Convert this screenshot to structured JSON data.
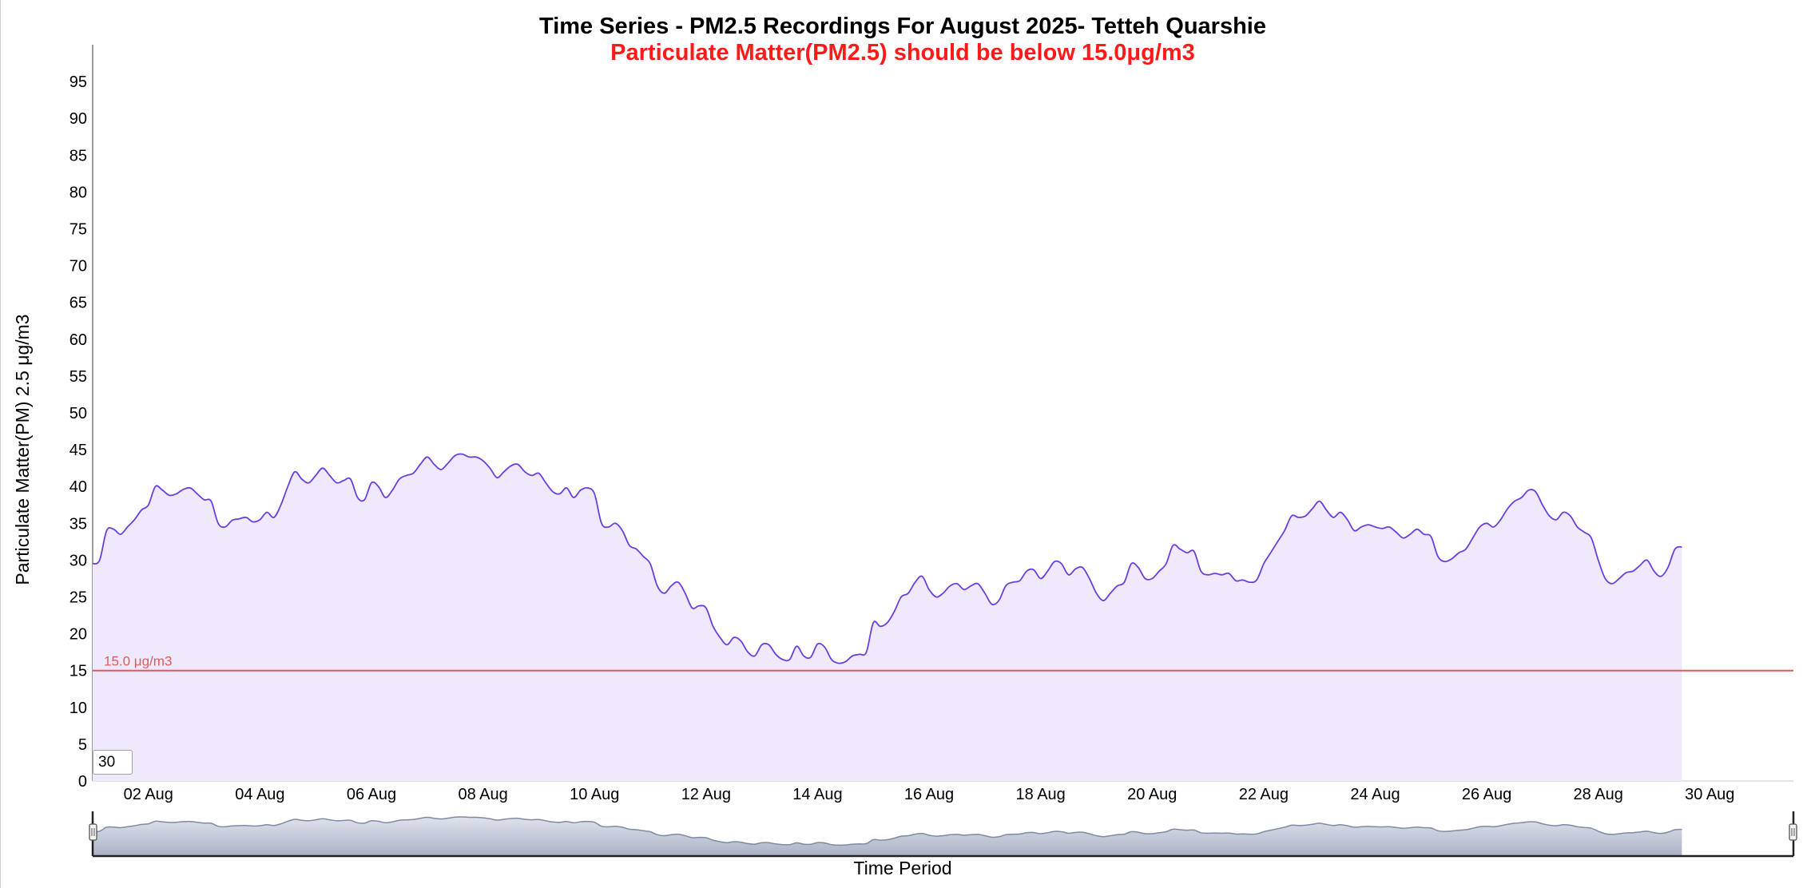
{
  "chart_data": {
    "type": "area",
    "title": "Time Series - PM2.5 Recordings For August 2025- Tetteh Quarshie",
    "subtitle": "Particulate Matter(PM2.5) should be below 15.0μg/m3",
    "xlabel": "Time Period",
    "ylabel": "Particulate Matter(PM) 2.5 μg/m3",
    "ylim": [
      0,
      100
    ],
    "xlim": [
      "2025-08-01",
      "2025-08-31T12:00"
    ],
    "y_ticks": [
      "0",
      "5",
      "10",
      "15",
      "20",
      "25",
      "30",
      "35",
      "40",
      "45",
      "50",
      "55",
      "60",
      "65",
      "70",
      "75",
      "80",
      "85",
      "90",
      "95"
    ],
    "x_ticks": [
      "02 Aug",
      "04 Aug",
      "06 Aug",
      "08 Aug",
      "10 Aug",
      "12 Aug",
      "14 Aug",
      "16 Aug",
      "18 Aug",
      "20 Aug",
      "22 Aug",
      "24 Aug",
      "26 Aug",
      "28 Aug",
      "30 Aug"
    ],
    "grid": false,
    "legend": "none",
    "threshold": {
      "value": 15.0,
      "label": "15.0 μg/m3"
    },
    "series": [
      {
        "values": [
          [
            "2025-08-01T00:00",
            29.5
          ],
          [
            "2025-08-01T03:00",
            30.0
          ],
          [
            "2025-08-01T06:00",
            34.0
          ],
          [
            "2025-08-01T09:00",
            34.2
          ],
          [
            "2025-08-01T12:00",
            33.5
          ],
          [
            "2025-08-01T15:00",
            34.5
          ],
          [
            "2025-08-01T18:00",
            35.5
          ],
          [
            "2025-08-01T21:00",
            36.8
          ],
          [
            "2025-08-02T00:00",
            37.5
          ],
          [
            "2025-08-02T03:00",
            40.0
          ],
          [
            "2025-08-02T06:00",
            39.5
          ],
          [
            "2025-08-02T09:00",
            38.8
          ],
          [
            "2025-08-02T12:00",
            39.0
          ],
          [
            "2025-08-02T15:00",
            39.6
          ],
          [
            "2025-08-02T18:00",
            39.8
          ],
          [
            "2025-08-02T21:00",
            39.0
          ],
          [
            "2025-08-03T00:00",
            38.2
          ],
          [
            "2025-08-03T03:00",
            38.0
          ],
          [
            "2025-08-03T06:00",
            35.0
          ],
          [
            "2025-08-03T09:00",
            34.5
          ],
          [
            "2025-08-03T12:00",
            35.4
          ],
          [
            "2025-08-03T15:00",
            35.6
          ],
          [
            "2025-08-03T18:00",
            35.8
          ],
          [
            "2025-08-03T21:00",
            35.2
          ],
          [
            "2025-08-04T00:00",
            35.5
          ],
          [
            "2025-08-04T03:00",
            36.5
          ],
          [
            "2025-08-04T06:00",
            35.8
          ],
          [
            "2025-08-04T09:00",
            37.5
          ],
          [
            "2025-08-04T12:00",
            40.0
          ],
          [
            "2025-08-04T15:00",
            42.0
          ],
          [
            "2025-08-04T18:00",
            41.0
          ],
          [
            "2025-08-04T21:00",
            40.5
          ],
          [
            "2025-08-05T00:00",
            41.5
          ],
          [
            "2025-08-05T03:00",
            42.5
          ],
          [
            "2025-08-05T06:00",
            41.5
          ],
          [
            "2025-08-05T09:00",
            40.5
          ],
          [
            "2025-08-05T12:00",
            40.8
          ],
          [
            "2025-08-05T15:00",
            41.0
          ],
          [
            "2025-08-05T18:00",
            38.5
          ],
          [
            "2025-08-05T21:00",
            38.2
          ],
          [
            "2025-08-06T00:00",
            40.5
          ],
          [
            "2025-08-06T03:00",
            40.0
          ],
          [
            "2025-08-06T06:00",
            38.5
          ],
          [
            "2025-08-06T09:00",
            39.5
          ],
          [
            "2025-08-06T12:00",
            41.0
          ],
          [
            "2025-08-06T15:00",
            41.5
          ],
          [
            "2025-08-06T18:00",
            41.8
          ],
          [
            "2025-08-06T21:00",
            43.0
          ],
          [
            "2025-08-07T00:00",
            44.0
          ],
          [
            "2025-08-07T03:00",
            43.0
          ],
          [
            "2025-08-07T06:00",
            42.3
          ],
          [
            "2025-08-07T09:00",
            43.2
          ],
          [
            "2025-08-07T12:00",
            44.2
          ],
          [
            "2025-08-07T15:00",
            44.4
          ],
          [
            "2025-08-07T18:00",
            44.0
          ],
          [
            "2025-08-07T21:00",
            44.0
          ],
          [
            "2025-08-08T00:00",
            43.5
          ],
          [
            "2025-08-08T03:00",
            42.5
          ],
          [
            "2025-08-08T06:00",
            41.2
          ],
          [
            "2025-08-08T09:00",
            42.0
          ],
          [
            "2025-08-08T12:00",
            42.8
          ],
          [
            "2025-08-08T15:00",
            43.0
          ],
          [
            "2025-08-08T18:00",
            42.0
          ],
          [
            "2025-08-08T21:00",
            41.5
          ],
          [
            "2025-08-09T00:00",
            41.8
          ],
          [
            "2025-08-09T03:00",
            40.5
          ],
          [
            "2025-08-09T06:00",
            39.3
          ],
          [
            "2025-08-09T09:00",
            39.0
          ],
          [
            "2025-08-09T12:00",
            39.8
          ],
          [
            "2025-08-09T15:00",
            38.5
          ],
          [
            "2025-08-09T18:00",
            39.5
          ],
          [
            "2025-08-09T21:00",
            39.8
          ],
          [
            "2025-08-10T00:00",
            39.0
          ],
          [
            "2025-08-10T03:00",
            35.0
          ],
          [
            "2025-08-10T06:00",
            34.5
          ],
          [
            "2025-08-10T09:00",
            35.0
          ],
          [
            "2025-08-10T12:00",
            34.0
          ],
          [
            "2025-08-10T15:00",
            32.0
          ],
          [
            "2025-08-10T18:00",
            31.5
          ],
          [
            "2025-08-10T21:00",
            30.5
          ],
          [
            "2025-08-11T00:00",
            29.5
          ],
          [
            "2025-08-11T03:00",
            26.5
          ],
          [
            "2025-08-11T06:00",
            25.5
          ],
          [
            "2025-08-11T09:00",
            26.5
          ],
          [
            "2025-08-11T12:00",
            27.0
          ],
          [
            "2025-08-11T15:00",
            25.5
          ],
          [
            "2025-08-11T18:00",
            23.5
          ],
          [
            "2025-08-11T21:00",
            23.8
          ],
          [
            "2025-08-12T00:00",
            23.5
          ],
          [
            "2025-08-12T03:00",
            21.0
          ],
          [
            "2025-08-12T06:00",
            19.5
          ],
          [
            "2025-08-12T09:00",
            18.5
          ],
          [
            "2025-08-12T12:00",
            19.5
          ],
          [
            "2025-08-12T15:00",
            19.0
          ],
          [
            "2025-08-12T18:00",
            17.5
          ],
          [
            "2025-08-12T21:00",
            17.0
          ],
          [
            "2025-08-13T00:00",
            18.5
          ],
          [
            "2025-08-13T03:00",
            18.5
          ],
          [
            "2025-08-13T06:00",
            17.2
          ],
          [
            "2025-08-13T09:00",
            16.5
          ],
          [
            "2025-08-13T12:00",
            16.5
          ],
          [
            "2025-08-13T15:00",
            18.3
          ],
          [
            "2025-08-13T18:00",
            17.0
          ],
          [
            "2025-08-13T21:00",
            16.8
          ],
          [
            "2025-08-14T00:00",
            18.6
          ],
          [
            "2025-08-14T03:00",
            18.2
          ],
          [
            "2025-08-14T06:00",
            16.5
          ],
          [
            "2025-08-14T09:00",
            16.0
          ],
          [
            "2025-08-14T12:00",
            16.2
          ],
          [
            "2025-08-14T15:00",
            17.0
          ],
          [
            "2025-08-14T18:00",
            17.2
          ],
          [
            "2025-08-14T21:00",
            17.5
          ],
          [
            "2025-08-15T00:00",
            21.5
          ],
          [
            "2025-08-15T03:00",
            21.0
          ],
          [
            "2025-08-15T06:00",
            21.5
          ],
          [
            "2025-08-15T09:00",
            23.0
          ],
          [
            "2025-08-15T12:00",
            25.0
          ],
          [
            "2025-08-15T15:00",
            25.5
          ],
          [
            "2025-08-15T18:00",
            27.0
          ],
          [
            "2025-08-15T21:00",
            27.8
          ],
          [
            "2025-08-16T00:00",
            26.0
          ],
          [
            "2025-08-16T03:00",
            25.0
          ],
          [
            "2025-08-16T06:00",
            25.5
          ],
          [
            "2025-08-16T09:00",
            26.5
          ],
          [
            "2025-08-16T12:00",
            26.8
          ],
          [
            "2025-08-16T15:00",
            26.0
          ],
          [
            "2025-08-16T18:00",
            26.5
          ],
          [
            "2025-08-16T21:00",
            26.8
          ],
          [
            "2025-08-17T00:00",
            25.5
          ],
          [
            "2025-08-17T03:00",
            24.0
          ],
          [
            "2025-08-17T06:00",
            24.5
          ],
          [
            "2025-08-17T09:00",
            26.5
          ],
          [
            "2025-08-17T12:00",
            27.0
          ],
          [
            "2025-08-17T15:00",
            27.2
          ],
          [
            "2025-08-17T18:00",
            28.5
          ],
          [
            "2025-08-17T21:00",
            28.7
          ],
          [
            "2025-08-18T00:00",
            27.5
          ],
          [
            "2025-08-18T03:00",
            28.5
          ],
          [
            "2025-08-18T06:00",
            29.8
          ],
          [
            "2025-08-18T09:00",
            29.5
          ],
          [
            "2025-08-18T12:00",
            28.0
          ],
          [
            "2025-08-18T15:00",
            28.8
          ],
          [
            "2025-08-18T18:00",
            29.0
          ],
          [
            "2025-08-18T21:00",
            27.5
          ],
          [
            "2025-08-19T00:00",
            25.5
          ],
          [
            "2025-08-19T03:00",
            24.5
          ],
          [
            "2025-08-19T06:00",
            25.5
          ],
          [
            "2025-08-19T09:00",
            26.5
          ],
          [
            "2025-08-19T12:00",
            27.0
          ],
          [
            "2025-08-19T15:00",
            29.5
          ],
          [
            "2025-08-19T18:00",
            29.0
          ],
          [
            "2025-08-19T21:00",
            27.5
          ],
          [
            "2025-08-20T00:00",
            27.5
          ],
          [
            "2025-08-20T03:00",
            28.5
          ],
          [
            "2025-08-20T06:00",
            29.5
          ],
          [
            "2025-08-20T09:00",
            32.0
          ],
          [
            "2025-08-20T12:00",
            31.5
          ],
          [
            "2025-08-20T15:00",
            31.0
          ],
          [
            "2025-08-20T18:00",
            31.2
          ],
          [
            "2025-08-20T21:00",
            28.5
          ],
          [
            "2025-08-21T00:00",
            28.0
          ],
          [
            "2025-08-21T03:00",
            28.2
          ],
          [
            "2025-08-21T06:00",
            28.0
          ],
          [
            "2025-08-21T09:00",
            28.2
          ],
          [
            "2025-08-21T12:00",
            27.2
          ],
          [
            "2025-08-21T15:00",
            27.3
          ],
          [
            "2025-08-21T18:00",
            27.0
          ],
          [
            "2025-08-21T21:00",
            27.3
          ],
          [
            "2025-08-22T00:00",
            29.5
          ],
          [
            "2025-08-22T03:00",
            31.0
          ],
          [
            "2025-08-22T06:00",
            32.5
          ],
          [
            "2025-08-22T09:00",
            34.0
          ],
          [
            "2025-08-22T12:00",
            36.0
          ],
          [
            "2025-08-22T15:00",
            35.8
          ],
          [
            "2025-08-22T18:00",
            36.0
          ],
          [
            "2025-08-22T21:00",
            37.0
          ],
          [
            "2025-08-23T00:00",
            38.0
          ],
          [
            "2025-08-23T03:00",
            36.8
          ],
          [
            "2025-08-23T06:00",
            35.8
          ],
          [
            "2025-08-23T09:00",
            36.5
          ],
          [
            "2025-08-23T12:00",
            35.5
          ],
          [
            "2025-08-23T15:00",
            34.0
          ],
          [
            "2025-08-23T18:00",
            34.5
          ],
          [
            "2025-08-23T21:00",
            34.8
          ],
          [
            "2025-08-24T00:00",
            34.5
          ],
          [
            "2025-08-24T03:00",
            34.3
          ],
          [
            "2025-08-24T06:00",
            34.5
          ],
          [
            "2025-08-24T09:00",
            33.8
          ],
          [
            "2025-08-24T12:00",
            33.0
          ],
          [
            "2025-08-24T15:00",
            33.5
          ],
          [
            "2025-08-24T18:00",
            34.2
          ],
          [
            "2025-08-24T21:00",
            33.5
          ],
          [
            "2025-08-25T00:00",
            33.2
          ],
          [
            "2025-08-25T03:00",
            30.5
          ],
          [
            "2025-08-25T06:00",
            29.8
          ],
          [
            "2025-08-25T09:00",
            30.2
          ],
          [
            "2025-08-25T12:00",
            31.0
          ],
          [
            "2025-08-25T15:00",
            31.5
          ],
          [
            "2025-08-25T18:00",
            33.0
          ],
          [
            "2025-08-25T21:00",
            34.5
          ],
          [
            "2025-08-26T00:00",
            35.0
          ],
          [
            "2025-08-26T03:00",
            34.5
          ],
          [
            "2025-08-26T06:00",
            35.5
          ],
          [
            "2025-08-26T09:00",
            37.0
          ],
          [
            "2025-08-26T12:00",
            38.0
          ],
          [
            "2025-08-26T15:00",
            38.5
          ],
          [
            "2025-08-26T18:00",
            39.5
          ],
          [
            "2025-08-26T21:00",
            39.3
          ],
          [
            "2025-08-27T00:00",
            37.5
          ],
          [
            "2025-08-27T03:00",
            36.0
          ],
          [
            "2025-08-27T06:00",
            35.5
          ],
          [
            "2025-08-27T09:00",
            36.5
          ],
          [
            "2025-08-27T12:00",
            36.0
          ],
          [
            "2025-08-27T15:00",
            34.5
          ],
          [
            "2025-08-27T18:00",
            33.8
          ],
          [
            "2025-08-27T21:00",
            33.0
          ],
          [
            "2025-08-28T00:00",
            30.0
          ],
          [
            "2025-08-28T03:00",
            27.5
          ],
          [
            "2025-08-28T06:00",
            26.8
          ],
          [
            "2025-08-28T09:00",
            27.5
          ],
          [
            "2025-08-28T12:00",
            28.3
          ],
          [
            "2025-08-28T15:00",
            28.5
          ],
          [
            "2025-08-28T18:00",
            29.3
          ],
          [
            "2025-08-28T21:00",
            30.0
          ],
          [
            "2025-08-29T00:00",
            28.5
          ],
          [
            "2025-08-29T03:00",
            27.8
          ],
          [
            "2025-08-29T06:00",
            29.0
          ],
          [
            "2025-08-29T09:00",
            31.5
          ],
          [
            "2025-08-29T12:00",
            31.8
          ]
        ]
      }
    ],
    "colors": {
      "line": "#6a3fe0",
      "area": "#f0e8fc",
      "threshold": "#e05a5a",
      "title": "#000000",
      "subtitle": "#ff1a1a",
      "navigator_fill": "#d3d7e2",
      "navigator_line": "#7f8aa3"
    }
  },
  "controls": {
    "smoothing_value": "30"
  }
}
